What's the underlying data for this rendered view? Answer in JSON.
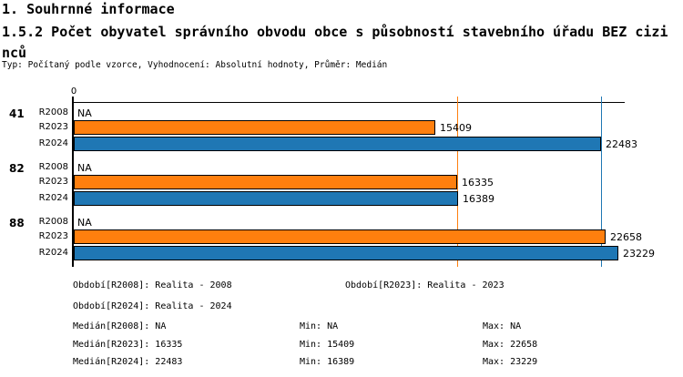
{
  "header": {
    "section_title": "1. Souhrnné informace",
    "chart_title": "1.5.2 Počet obyvatel správního obvodu obce s působností stavebního úřadu BEZ cizinců",
    "meta": "Typ: Počítaný podle vzorce, Vyhodnocení: Absolutní hodnoty, Průměr: Medián"
  },
  "chart_data": {
    "type": "bar",
    "orientation": "horizontal",
    "title": "1.5.2 Počet obyvatel správního obvodu obce s působností stavebního úřadu BEZ cizinců",
    "grid": false,
    "legend_position": "bottom",
    "axis": {
      "zero_label": "0",
      "xlim": [
        0,
        23500
      ]
    },
    "colors": {
      "orange": "#ff7f0e",
      "blue": "#1f77b4"
    },
    "groups": [
      {
        "label": "41",
        "rows": [
          {
            "series": "R2008",
            "value": null,
            "display": "NA",
            "color": null
          },
          {
            "series": "R2023",
            "value": 15409,
            "display": "15409",
            "color": "orange"
          },
          {
            "series": "R2024",
            "value": 22483,
            "display": "22483",
            "color": "blue"
          }
        ]
      },
      {
        "label": "82",
        "rows": [
          {
            "series": "R2008",
            "value": null,
            "display": "NA",
            "color": null
          },
          {
            "series": "R2023",
            "value": 16335,
            "display": "16335",
            "color": "orange"
          },
          {
            "series": "R2024",
            "value": 16389,
            "display": "16389",
            "color": "blue"
          }
        ]
      },
      {
        "label": "88",
        "rows": [
          {
            "series": "R2008",
            "value": null,
            "display": "NA",
            "color": null
          },
          {
            "series": "R2023",
            "value": 22658,
            "display": "22658",
            "color": "orange"
          },
          {
            "series": "R2024",
            "value": 23229,
            "display": "23229",
            "color": "blue"
          }
        ]
      }
    ],
    "reference_lines": [
      {
        "value": 16335,
        "color": "orange"
      },
      {
        "value": 22483,
        "color": "blue"
      }
    ]
  },
  "legend": {
    "rows": [
      {
        "a": "Období[R2008]: Realita - 2008",
        "b": "Období[R2023]: Realita - 2023"
      },
      {
        "a": "Období[R2024]: Realita - 2024"
      },
      {
        "a": "Medián[R2008]: NA",
        "min": "Min: NA",
        "max": "Max: NA"
      },
      {
        "a": "Medián[R2023]: 16335",
        "min": "Min: 15409",
        "max": "Max: 22658"
      },
      {
        "a": "Medián[R2024]: 22483",
        "min": "Min: 16389",
        "max": "Max: 23229"
      }
    ]
  }
}
